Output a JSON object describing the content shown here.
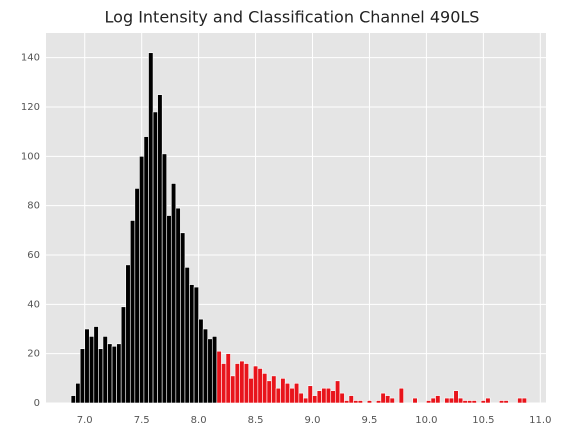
{
  "chart_data": {
    "type": "histogram",
    "title": "Log Intensity and Classification Channel 490LS",
    "bins": [
      6.88,
      6.92,
      6.96,
      7,
      7.04,
      7.08,
      7.12,
      7.16,
      7.2,
      7.24,
      7.28,
      7.32,
      7.36,
      7.4,
      7.44,
      7.48,
      7.52,
      7.56,
      7.6,
      7.64,
      7.68,
      7.72,
      7.76,
      7.8,
      7.84,
      7.88,
      7.92,
      7.96,
      8,
      8.04,
      8.08,
      8.12,
      8.16,
      8.2,
      8.24,
      8.28,
      8.32,
      8.36,
      8.4,
      8.44,
      8.48,
      8.52,
      8.56,
      8.6,
      8.64,
      8.68,
      8.72,
      8.76,
      8.8,
      8.84,
      8.88,
      8.92,
      8.96,
      9,
      9.04,
      9.08,
      9.12,
      9.16,
      9.2,
      9.24,
      9.28,
      9.32,
      9.36,
      9.4,
      9.44,
      9.48,
      9.52,
      9.56,
      9.6,
      9.64,
      9.68,
      9.72,
      9.76,
      9.8,
      9.84,
      9.88,
      9.92,
      9.96,
      10,
      10.04,
      10.08,
      10.12,
      10.16,
      10.2,
      10.24,
      10.28,
      10.32,
      10.36,
      10.4,
      10.44,
      10.48,
      10.52,
      10.56,
      10.6,
      10.64,
      10.68,
      10.72,
      10.76,
      10.8,
      10.84,
      10.88
    ],
    "values": [
      3,
      8,
      22,
      30,
      27,
      31,
      22,
      27,
      24,
      23,
      24,
      39,
      56,
      74,
      87,
      100,
      108,
      142,
      118,
      125,
      101,
      76,
      89,
      79,
      69,
      55,
      48,
      47,
      34,
      30,
      26,
      27,
      21,
      16,
      20,
      11,
      16,
      17,
      16,
      10,
      15,
      14,
      12,
      9,
      11,
      6,
      10,
      8,
      6,
      8,
      4,
      2,
      7,
      3,
      5,
      6,
      6,
      5,
      9,
      4,
      1,
      3,
      1,
      1,
      0,
      1,
      0,
      1,
      4,
      3,
      2,
      0,
      6,
      0,
      0,
      2,
      0,
      0,
      1,
      2,
      3,
      0,
      2,
      2,
      5,
      2,
      1,
      1,
      1,
      0,
      1,
      2,
      0,
      0,
      1,
      1,
      0,
      0,
      2,
      2
    ],
    "colors": [
      "#000000",
      "#000000",
      "#000000",
      "#000000",
      "#000000",
      "#000000",
      "#000000",
      "#000000",
      "#000000",
      "#000000",
      "#000000",
      "#000000",
      "#000000",
      "#000000",
      "#000000",
      "#000000",
      "#000000",
      "#000000",
      "#000000",
      "#000000",
      "#000000",
      "#000000",
      "#000000",
      "#000000",
      "#000000",
      "#000000",
      "#000000",
      "#000000",
      "#000000",
      "#000000",
      "#000000",
      "#000000",
      "#e8141b",
      "#e8141b",
      "#e8141b",
      "#e8141b",
      "#e8141b",
      "#e8141b",
      "#e8141b",
      "#e8141b",
      "#e8141b",
      "#e8141b",
      "#e8141b",
      "#e8141b",
      "#e8141b",
      "#e8141b",
      "#e8141b",
      "#e8141b",
      "#e8141b",
      "#e8141b",
      "#e8141b",
      "#e8141b",
      "#e8141b",
      "#e8141b",
      "#e8141b",
      "#e8141b",
      "#e8141b",
      "#e8141b",
      "#e8141b",
      "#e8141b",
      "#e8141b",
      "#e8141b",
      "#e8141b",
      "#e8141b",
      "#e8141b",
      "#e8141b",
      "#e8141b",
      "#e8141b",
      "#e8141b",
      "#e8141b",
      "#e8141b",
      "#e8141b",
      "#e8141b",
      "#e8141b",
      "#e8141b",
      "#e8141b",
      "#e8141b",
      "#e8141b",
      "#e8141b",
      "#e8141b",
      "#e8141b",
      "#e8141b",
      "#e8141b",
      "#e8141b",
      "#e8141b",
      "#e8141b",
      "#e8141b",
      "#e8141b",
      "#e8141b",
      "#e8141b",
      "#e8141b",
      "#e8141b",
      "#e8141b",
      "#e8141b",
      "#e8141b",
      "#e8141b",
      "#e8141b",
      "#e8141b",
      "#e8141b",
      "#e8141b"
    ],
    "xlim": [
      6.66,
      11.05
    ],
    "ylim": [
      0,
      150
    ],
    "xticks": [
      {
        "value": 7,
        "label": "7.0"
      },
      7.5,
      {
        "value": 8,
        "label": "8.0"
      },
      8.5,
      {
        "value": 9,
        "label": "9.0"
      },
      9.5,
      {
        "value": 10,
        "label": "10.0"
      },
      10.5,
      {
        "value": 11,
        "label": "11.0"
      }
    ],
    "yticks": [
      0,
      20,
      40,
      60,
      80,
      100,
      120,
      140
    ],
    "grid": true
  }
}
